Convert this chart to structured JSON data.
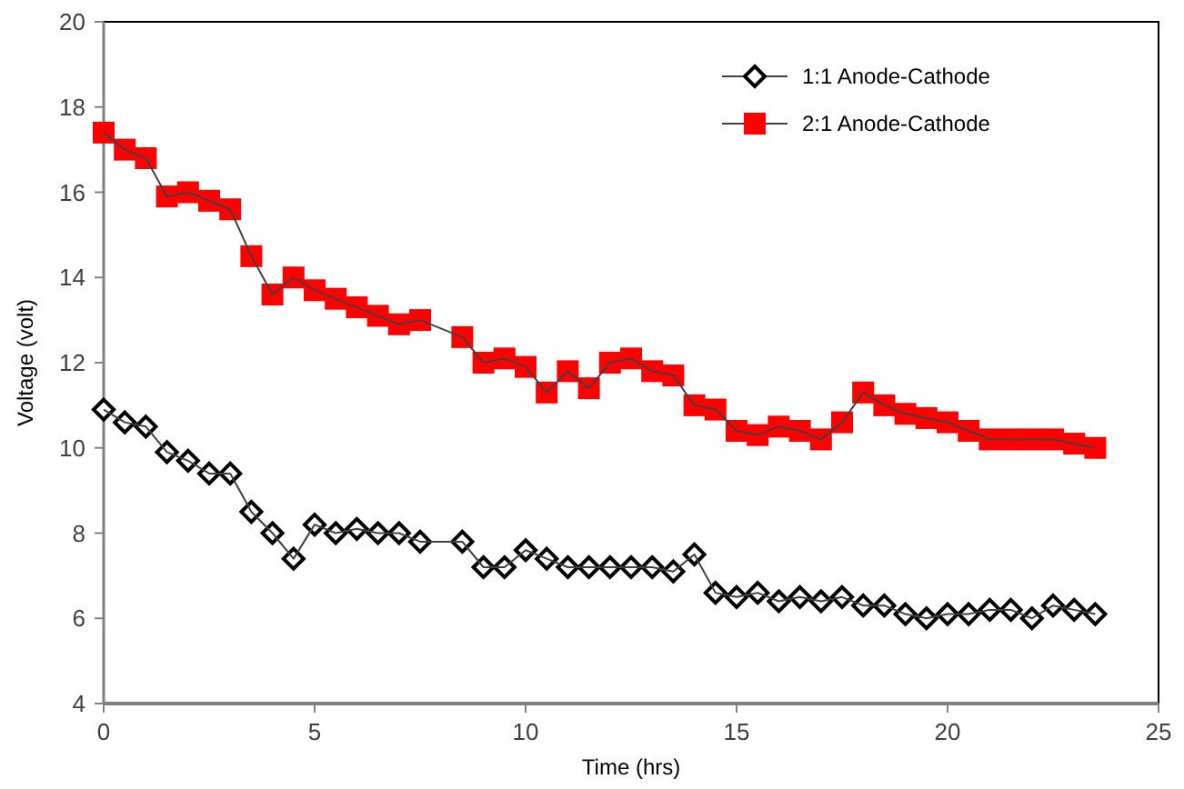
{
  "chart_data": {
    "type": "line",
    "xlabel": "Time (hrs)",
    "ylabel": "Voltage (volt)",
    "x": [
      0,
      0.5,
      1,
      1.5,
      2,
      2.5,
      3,
      3.5,
      4,
      4.5,
      5,
      5.5,
      6,
      6.5,
      7,
      7.5,
      8.5,
      9,
      9.5,
      10,
      10.5,
      11,
      11.5,
      12,
      12.5,
      13,
      13.5,
      14,
      14.5,
      15,
      15.5,
      16,
      16.5,
      17,
      17.5,
      18,
      18.5,
      19,
      19.5,
      20,
      20.5,
      21,
      21.5,
      22,
      22.5,
      23,
      23.5
    ],
    "series": [
      {
        "name": "1:1 Anode-Cathode",
        "color": "#000000",
        "marker": "diamond",
        "values": [
          10.9,
          10.6,
          10.5,
          9.9,
          9.7,
          9.4,
          9.4,
          8.5,
          8.0,
          7.4,
          8.2,
          8.0,
          8.1,
          8.0,
          8.0,
          7.8,
          7.8,
          7.2,
          7.2,
          7.6,
          7.4,
          7.2,
          7.2,
          7.2,
          7.2,
          7.2,
          7.1,
          7.5,
          6.6,
          6.5,
          6.6,
          6.4,
          6.5,
          6.4,
          6.5,
          6.3,
          6.3,
          6.1,
          6.0,
          6.1,
          6.1,
          6.2,
          6.2,
          6.0,
          6.3,
          6.2,
          6.1
        ]
      },
      {
        "name": "2:1 Anode-Cathode",
        "color": "#ff0000",
        "marker": "square",
        "values": [
          17.4,
          17.0,
          16.8,
          15.9,
          16.0,
          15.8,
          15.6,
          14.5,
          13.6,
          14.0,
          13.7,
          13.5,
          13.3,
          13.1,
          12.9,
          13.0,
          12.6,
          12.0,
          12.1,
          11.9,
          11.3,
          11.8,
          11.4,
          12.0,
          12.1,
          11.8,
          11.7,
          11.0,
          10.9,
          10.4,
          10.3,
          10.5,
          10.4,
          10.2,
          10.6,
          11.3,
          11.0,
          10.8,
          10.7,
          10.6,
          10.4,
          10.2,
          10.2,
          10.2,
          10.2,
          10.1,
          10.0
        ]
      }
    ],
    "xlim": [
      0,
      25
    ],
    "xticks": [
      0,
      5,
      10,
      15,
      20,
      25
    ],
    "ylim": [
      4,
      20
    ],
    "yticks": [
      4,
      6,
      8,
      10,
      12,
      14,
      16,
      18,
      20
    ],
    "legend": "top right",
    "line_style": "solid"
  }
}
